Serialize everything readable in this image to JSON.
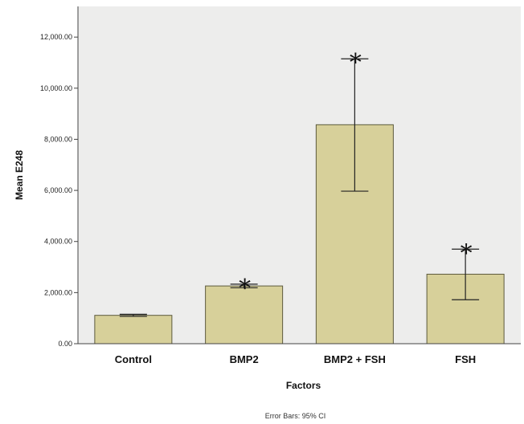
{
  "chart_data": {
    "type": "bar",
    "categories": [
      "Control",
      "BMP2",
      "BMP2 + FSH",
      "FSH"
    ],
    "values": [
      1110,
      2260,
      8570,
      2720
    ],
    "error_bars": {
      "lower": [
        1070,
        2190,
        5970,
        1720
      ],
      "upper": [
        1150,
        2330,
        11150,
        3700
      ]
    },
    "significance": [
      "",
      "*",
      "*",
      "*"
    ],
    "xlabel": "Factors",
    "ylabel": "Mean E248",
    "ylim": [
      0,
      13200
    ],
    "yticks": [
      0,
      2000,
      4000,
      6000,
      8000,
      10000,
      12000
    ],
    "ytick_labels": [
      "0.00",
      "2,000.00",
      "4,000.00",
      "6,000.00",
      "8,000.00",
      "10,000.00",
      "12,000.00"
    ],
    "footnote": "Error Bars: 95% CI",
    "grid": false,
    "colors": {
      "plot_background": "#ededec",
      "bar_fill": "#d7d09a",
      "bar_stroke": "#5c5a3c",
      "axis": "#444444",
      "error_bar": "#222222"
    }
  }
}
